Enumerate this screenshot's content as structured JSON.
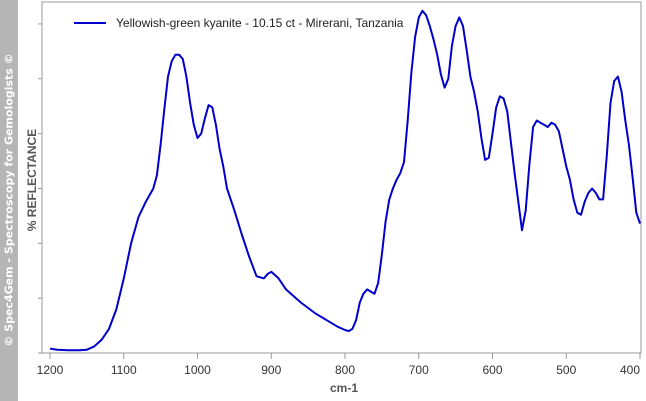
{
  "sidebar_text": "© Spec4Gem - Spectroscopy for Gemologists ©",
  "chart_data": {
    "type": "line",
    "title": "",
    "xlabel": "cm-1",
    "ylabel": "%  REFLECTANCE",
    "xlim": [
      1200,
      400
    ],
    "x_reversed": true,
    "xticks": [
      1200,
      1100,
      1000,
      900,
      800,
      700,
      600,
      500,
      400
    ],
    "grid": false,
    "legend_position": "top-left",
    "y_scale": "arbitrary",
    "series": [
      {
        "name": "Yellowish-green kyanite - 10.15 ct - Mirerani, Tanzania",
        "color": "#0000cc",
        "points": [
          [
            1200,
            4
          ],
          [
            1190,
            3
          ],
          [
            1175,
            2.5
          ],
          [
            1160,
            2.5
          ],
          [
            1150,
            3
          ],
          [
            1140,
            6
          ],
          [
            1130,
            12
          ],
          [
            1120,
            22
          ],
          [
            1110,
            40
          ],
          [
            1100,
            68
          ],
          [
            1090,
            100
          ],
          [
            1080,
            124
          ],
          [
            1070,
            138
          ],
          [
            1060,
            150
          ],
          [
            1055,
            162
          ],
          [
            1050,
            190
          ],
          [
            1045,
            222
          ],
          [
            1040,
            252
          ],
          [
            1035,
            266
          ],
          [
            1030,
            272
          ],
          [
            1025,
            272
          ],
          [
            1020,
            268
          ],
          [
            1015,
            252
          ],
          [
            1010,
            228
          ],
          [
            1005,
            208
          ],
          [
            1000,
            196
          ],
          [
            995,
            200
          ],
          [
            990,
            214
          ],
          [
            985,
            226
          ],
          [
            980,
            224
          ],
          [
            975,
            208
          ],
          [
            970,
            186
          ],
          [
            965,
            170
          ],
          [
            960,
            150
          ],
          [
            950,
            130
          ],
          [
            940,
            108
          ],
          [
            930,
            88
          ],
          [
            920,
            70
          ],
          [
            910,
            68
          ],
          [
            905,
            72
          ],
          [
            900,
            74
          ],
          [
            890,
            68
          ],
          [
            880,
            58
          ],
          [
            860,
            46
          ],
          [
            840,
            36
          ],
          [
            820,
            28
          ],
          [
            810,
            24
          ],
          [
            800,
            21
          ],
          [
            795,
            20
          ],
          [
            790,
            22
          ],
          [
            785,
            30
          ],
          [
            780,
            46
          ],
          [
            775,
            54
          ],
          [
            770,
            58
          ],
          [
            765,
            56
          ],
          [
            760,
            54
          ],
          [
            755,
            64
          ],
          [
            750,
            90
          ],
          [
            745,
            120
          ],
          [
            740,
            140
          ],
          [
            735,
            150
          ],
          [
            730,
            158
          ],
          [
            725,
            164
          ],
          [
            720,
            174
          ],
          [
            715,
            212
          ],
          [
            710,
            256
          ],
          [
            705,
            288
          ],
          [
            700,
            306
          ],
          [
            695,
            312
          ],
          [
            690,
            308
          ],
          [
            685,
            298
          ],
          [
            680,
            286
          ],
          [
            675,
            272
          ],
          [
            670,
            254
          ],
          [
            665,
            242
          ],
          [
            660,
            250
          ],
          [
            655,
            280
          ],
          [
            650,
            298
          ],
          [
            645,
            306
          ],
          [
            640,
            298
          ],
          [
            635,
            276
          ],
          [
            630,
            252
          ],
          [
            625,
            238
          ],
          [
            620,
            220
          ],
          [
            615,
            196
          ],
          [
            610,
            176
          ],
          [
            605,
            178
          ],
          [
            600,
            200
          ],
          [
            595,
            224
          ],
          [
            590,
            234
          ],
          [
            585,
            232
          ],
          [
            580,
            220
          ],
          [
            575,
            192
          ],
          [
            570,
            164
          ],
          [
            565,
            138
          ],
          [
            560,
            112
          ],
          [
            555,
            130
          ],
          [
            550,
            172
          ],
          [
            545,
            206
          ],
          [
            540,
            212
          ],
          [
            535,
            210
          ],
          [
            530,
            208
          ],
          [
            525,
            206
          ],
          [
            520,
            210
          ],
          [
            515,
            208
          ],
          [
            510,
            202
          ],
          [
            505,
            186
          ],
          [
            500,
            170
          ],
          [
            495,
            158
          ],
          [
            490,
            140
          ],
          [
            485,
            128
          ],
          [
            480,
            126
          ],
          [
            475,
            138
          ],
          [
            470,
            146
          ],
          [
            465,
            150
          ],
          [
            460,
            146
          ],
          [
            455,
            140
          ],
          [
            450,
            140
          ],
          [
            445,
            180
          ],
          [
            440,
            228
          ],
          [
            435,
            248
          ],
          [
            430,
            252
          ],
          [
            425,
            238
          ],
          [
            420,
            212
          ],
          [
            415,
            190
          ],
          [
            410,
            160
          ],
          [
            405,
            128
          ],
          [
            400,
            118
          ]
        ]
      }
    ]
  }
}
